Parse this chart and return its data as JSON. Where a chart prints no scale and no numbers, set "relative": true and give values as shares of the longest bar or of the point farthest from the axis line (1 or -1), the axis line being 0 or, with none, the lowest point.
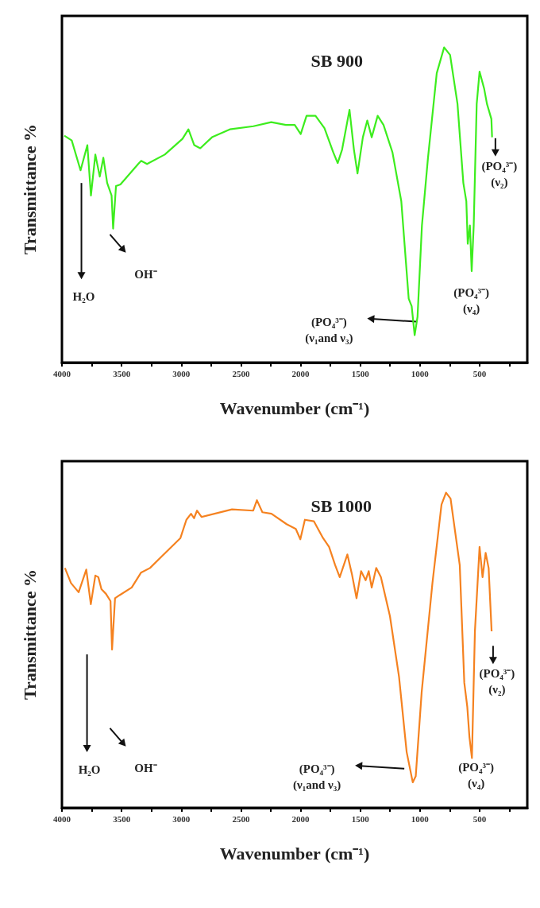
{
  "chart_data": [
    {
      "type": "line",
      "title": "SB 900",
      "xlabel": "Wavenumber (cm⁻¹)",
      "ylabel": "Transmittance %",
      "relative": true,
      "xlim": [
        4000,
        100
      ],
      "xticks": [
        4000,
        {
          "value": 3750,
          "label": null
        },
        3500,
        {
          "value": 3250,
          "label": null
        },
        3000,
        {
          "value": 2750,
          "label": null
        },
        2500,
        {
          "value": 2250,
          "label": null
        },
        2000,
        {
          "value": 1750,
          "label": null
        },
        1500,
        {
          "value": 1250,
          "label": null
        },
        1000,
        {
          "value": 750,
          "label": null
        },
        500,
        {
          "value": 250,
          "label": null
        }
      ],
      "series": [
        {
          "color": "#3ded1e",
          "x": [
            3980,
            3918,
            3844,
            3787,
            3757,
            3720,
            3683,
            3653,
            3621,
            3584,
            3571,
            3547,
            3510,
            3361,
            3336,
            3287,
            3138,
            2990,
            2940,
            2891,
            2841,
            2742,
            2593,
            2395,
            2246,
            2123,
            2049,
            1999,
            1950,
            1875,
            1800,
            1726,
            1689,
            1652,
            1590,
            1553,
            1523,
            1478,
            1441,
            1404,
            1354,
            1305,
            1230,
            1156,
            1094,
            1069,
            1044,
            1020,
            983,
            933,
            859,
            797,
            747,
            685,
            636,
            611,
            599,
            581,
            566,
            549,
            524,
            500,
            462,
            438,
            401,
            395
          ],
          "values": [
            0.72,
            0.705,
            0.61,
            0.69,
            0.53,
            0.66,
            0.59,
            0.65,
            0.57,
            0.53,
            0.425,
            0.56,
            0.565,
            0.63,
            0.64,
            0.63,
            0.66,
            0.71,
            0.74,
            0.69,
            0.68,
            0.715,
            0.74,
            0.75,
            0.763,
            0.754,
            0.754,
            0.725,
            0.783,
            0.783,
            0.744,
            0.667,
            0.633,
            0.676,
            0.802,
            0.676,
            0.6,
            0.715,
            0.768,
            0.715,
            0.783,
            0.754,
            0.667,
            0.512,
            0.203,
            0.179,
            0.087,
            0.145,
            0.435,
            0.647,
            0.918,
            1.0,
            0.976,
            0.821,
            0.57,
            0.512,
            0.377,
            0.435,
            0.29,
            0.435,
            0.821,
            0.923,
            0.87,
            0.821,
            0.773,
            0.715
          ]
        }
      ],
      "annotations": [
        "H₂O",
        "OH⁻",
        "(PO₄³⁻)\n(ν₁and ν₃)",
        "(PO₄³⁻)\n(ν₄)",
        "(PO₄³⁻)\n(ν₂)"
      ]
    },
    {
      "type": "line",
      "title": "SB 1000",
      "xlabel": "Wavenumber (cm⁻¹)",
      "ylabel": "Transmittance %",
      "relative": true,
      "xlim": [
        4000,
        100
      ],
      "xticks": [
        4000,
        {
          "value": 3750,
          "label": null
        },
        3500,
        {
          "value": 3250,
          "label": null
        },
        3000,
        {
          "value": 2750,
          "label": null
        },
        2500,
        {
          "value": 2250,
          "label": null
        },
        2000,
        {
          "value": 1750,
          "label": null
        },
        1500,
        {
          "value": 1250,
          "label": null
        },
        1000,
        {
          "value": 750,
          "label": null
        },
        500,
        {
          "value": 250,
          "label": null
        }
      ],
      "series": [
        {
          "color": "#f58220",
          "x": [
            3975,
            3924,
            3860,
            3796,
            3758,
            3720,
            3695,
            3669,
            3631,
            3593,
            3580,
            3555,
            3516,
            3415,
            3338,
            3262,
            3160,
            3007,
            2957,
            2918,
            2893,
            2868,
            2830,
            2575,
            2397,
            2366,
            2320,
            2244,
            2117,
            2040,
            2002,
            1964,
            1888,
            1812,
            1761,
            1710,
            1672,
            1646,
            1608,
            1570,
            1531,
            1493,
            1455,
            1429,
            1404,
            1366,
            1327,
            1251,
            1175,
            1111,
            1060,
            1035,
            985,
            895,
            819,
            781,
            743,
            666,
            628,
            603,
            585,
            564,
            539,
            500,
            475,
            449,
            424,
            399
          ],
          "values": [
            0.761,
            0.713,
            0.684,
            0.756,
            0.646,
            0.737,
            0.732,
            0.694,
            0.679,
            0.656,
            0.502,
            0.665,
            0.675,
            0.699,
            0.746,
            0.761,
            0.799,
            0.856,
            0.914,
            0.933,
            0.919,
            0.943,
            0.923,
            0.947,
            0.943,
            0.976,
            0.938,
            0.933,
            0.9,
            0.885,
            0.852,
            0.914,
            0.909,
            0.856,
            0.828,
            0.77,
            0.732,
            0.761,
            0.804,
            0.742,
            0.665,
            0.751,
            0.722,
            0.751,
            0.699,
            0.761,
            0.732,
            0.608,
            0.416,
            0.177,
            0.081,
            0.1,
            0.368,
            0.713,
            0.962,
            1.0,
            0.981,
            0.77,
            0.397,
            0.321,
            0.225,
            0.158,
            0.56,
            0.828,
            0.732,
            0.809,
            0.761,
            0.56
          ]
        }
      ],
      "annotations": [
        "H₂O",
        "OH⁻",
        "(PO₄³⁻)\n(ν₁and ν₃)",
        "(PO₄³⁻)\n(ν₄)",
        "(PO₄³⁻)\n(ν₂)"
      ]
    }
  ]
}
